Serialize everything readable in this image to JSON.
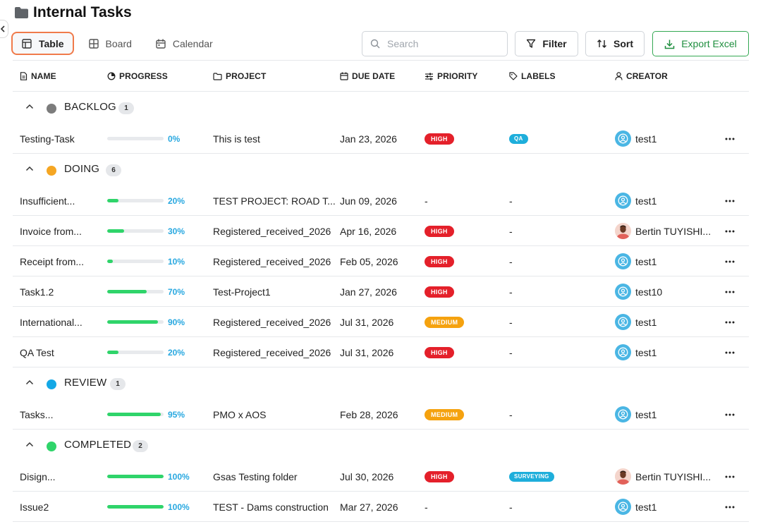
{
  "page": {
    "title": "Internal Tasks",
    "collapse_icon": "chevron-left-icon"
  },
  "views": [
    {
      "label": "Table",
      "icon": "table-icon",
      "active": true
    },
    {
      "label": "Board",
      "icon": "board-icon",
      "active": false
    },
    {
      "label": "Calendar",
      "icon": "calendar-icon",
      "active": false
    }
  ],
  "toolbar": {
    "search_placeholder": "Search",
    "filter_label": "Filter",
    "sort_label": "Sort",
    "export_label": "Export Excel"
  },
  "columns": {
    "name": "NAME",
    "progress": "PROGRESS",
    "project": "PROJECT",
    "due_date": "DUE DATE",
    "priority": "PRIORITY",
    "labels": "LABELS",
    "creator": "CREATOR"
  },
  "colors": {
    "backlog": "#7c7c7c",
    "doing": "#f5a623",
    "review": "#14a8e6",
    "completed": "#2fd46a",
    "high": "#e4202a",
    "medium": "#f5a20f",
    "progress_fill": "#2fd46a",
    "accent": "#f07a4a"
  },
  "groups": [
    {
      "name": "BACKLOG",
      "count": "1",
      "color": "#7c7c7c",
      "tasks": [
        {
          "name": "Testing-Task",
          "progress": 0,
          "progress_text": "0%",
          "project": "This is test",
          "due": "Jan 23, 2026",
          "priority": "HIGH",
          "label": "QA",
          "creator": "test1",
          "avatar": "user"
        }
      ]
    },
    {
      "name": "DOING",
      "count": "6",
      "color": "#f5a623",
      "tasks": [
        {
          "name": "Insufficient...",
          "progress": 20,
          "progress_text": "20%",
          "project": "TEST PROJECT: ROAD T...",
          "due": "Jun 09, 2026",
          "priority": "-",
          "label": "-",
          "creator": "test1",
          "avatar": "user"
        },
        {
          "name": "Invoice from...",
          "progress": 30,
          "progress_text": "30%",
          "project": "Registered_received_2026",
          "due": "Apr 16, 2026",
          "priority": "HIGH",
          "label": "-",
          "creator": "Bertin TUYISHI...",
          "avatar": "photo"
        },
        {
          "name": "Receipt from...",
          "progress": 10,
          "progress_text": "10%",
          "project": "Registered_received_2026",
          "due": "Feb 05, 2026",
          "priority": "HIGH",
          "label": "-",
          "creator": "test1",
          "avatar": "user"
        },
        {
          "name": "Task1.2",
          "progress": 70,
          "progress_text": "70%",
          "project": "Test-Project1",
          "due": "Jan 27, 2026",
          "priority": "HIGH",
          "label": "-",
          "creator": "test10",
          "avatar": "user"
        },
        {
          "name": "International...",
          "progress": 90,
          "progress_text": "90%",
          "project": "Registered_received_2026",
          "due": "Jul 31, 2026",
          "priority": "MEDIUM",
          "label": "-",
          "creator": "test1",
          "avatar": "user"
        },
        {
          "name": "QA Test",
          "progress": 20,
          "progress_text": "20%",
          "project": "Registered_received_2026",
          "due": "Jul 31, 2026",
          "priority": "HIGH",
          "label": "-",
          "creator": "test1",
          "avatar": "user"
        }
      ]
    },
    {
      "name": "REVIEW",
      "count": "1",
      "color": "#14a8e6",
      "tasks": [
        {
          "name": "Tasks...",
          "progress": 95,
          "progress_text": "95%",
          "project": "PMO x AOS",
          "due": "Feb 28, 2026",
          "priority": "MEDIUM",
          "label": "-",
          "creator": "test1",
          "avatar": "user"
        }
      ]
    },
    {
      "name": "COMPLETED",
      "count": "2",
      "color": "#2fd46a",
      "tasks": [
        {
          "name": "Disign...",
          "progress": 100,
          "progress_text": "100%",
          "project": "Gsas Testing folder",
          "due": "Jul 30, 2026",
          "priority": "HIGH",
          "label": "SURVEYING",
          "creator": "Bertin TUYISHI...",
          "avatar": "photo"
        },
        {
          "name": "Issue2",
          "progress": 100,
          "progress_text": "100%",
          "project": "TEST - Dams construction",
          "due": "Mar 27, 2026",
          "priority": "-",
          "label": "-",
          "creator": "test1",
          "avatar": "user"
        }
      ]
    }
  ]
}
